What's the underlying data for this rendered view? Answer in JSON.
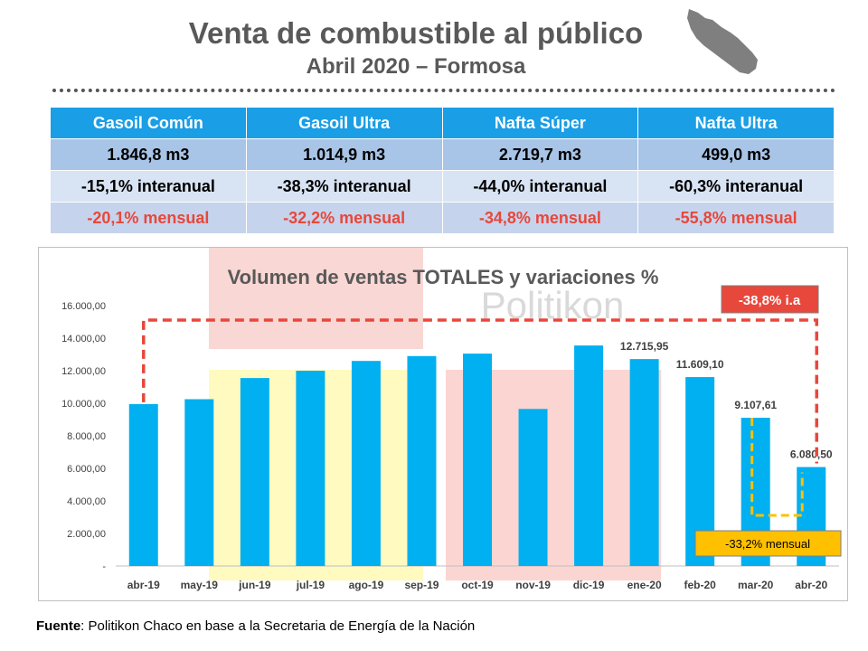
{
  "header": {
    "title": "Venta de combustible al público",
    "subtitle": "Abril 2020 – Formosa"
  },
  "summary_table": {
    "columns": [
      "Gasoil Común",
      "Gasoil Ultra",
      "Nafta Súper",
      "Nafta Ultra"
    ],
    "volumes": [
      "1.846,8 m3",
      "1.014,9 m3",
      "2.719,7 m3",
      "499,0 m3"
    ],
    "interanual": [
      "-15,1% interanual",
      "-38,3% interanual",
      "-44,0% interanual",
      "-60,3% interanual"
    ],
    "mensual": [
      "-20,1% mensual",
      "-32,2% mensual",
      "-34,8% mensual",
      "-55,8% mensual"
    ]
  },
  "watermark": "Politikon",
  "callouts": {
    "interanual": "-38,8% i.a",
    "mensual": "-33,2% mensual"
  },
  "source": {
    "label": "Fuente",
    "text": ": Politikon Chaco en base a la Secretaria de Energía de la Nación"
  },
  "colors": {
    "bar": "#00b0f0",
    "table_header": "#1a9ee6",
    "dashed_interanual": "#e8473b",
    "dashed_mensual": "#ffc000",
    "callout_interanual_bg": "#e8473b",
    "callout_mensual_bg": "#ffc000"
  },
  "chart_data": {
    "type": "bar",
    "title": "Volumen de ventas TOTALES y variaciones %",
    "categories": [
      "abr-19",
      "may-19",
      "jun-19",
      "jul-19",
      "ago-19",
      "sep-19",
      "oct-19",
      "nov-19",
      "dic-19",
      "ene-20",
      "feb-20",
      "mar-20",
      "abr-20"
    ],
    "values": [
      9950,
      10250,
      11550,
      12000,
      12600,
      12900,
      13050,
      9650,
      13550,
      12715.95,
      11609.1,
      9107.61,
      6080.5
    ],
    "data_labels": [
      "",
      "",
      "",
      "",
      "",
      "",
      "",
      "",
      "",
      "12.715,95",
      "11.609,10",
      "9.107,61",
      "6.080,50"
    ],
    "y_ticks": [
      "-",
      "2.000,00",
      "4.000,00",
      "6.000,00",
      "8.000,00",
      "10.000,00",
      "12.000,00",
      "14.000,00",
      "16.000,00"
    ],
    "ylim": [
      0,
      16000
    ],
    "grid": false,
    "xlabel": "",
    "ylabel": ""
  }
}
